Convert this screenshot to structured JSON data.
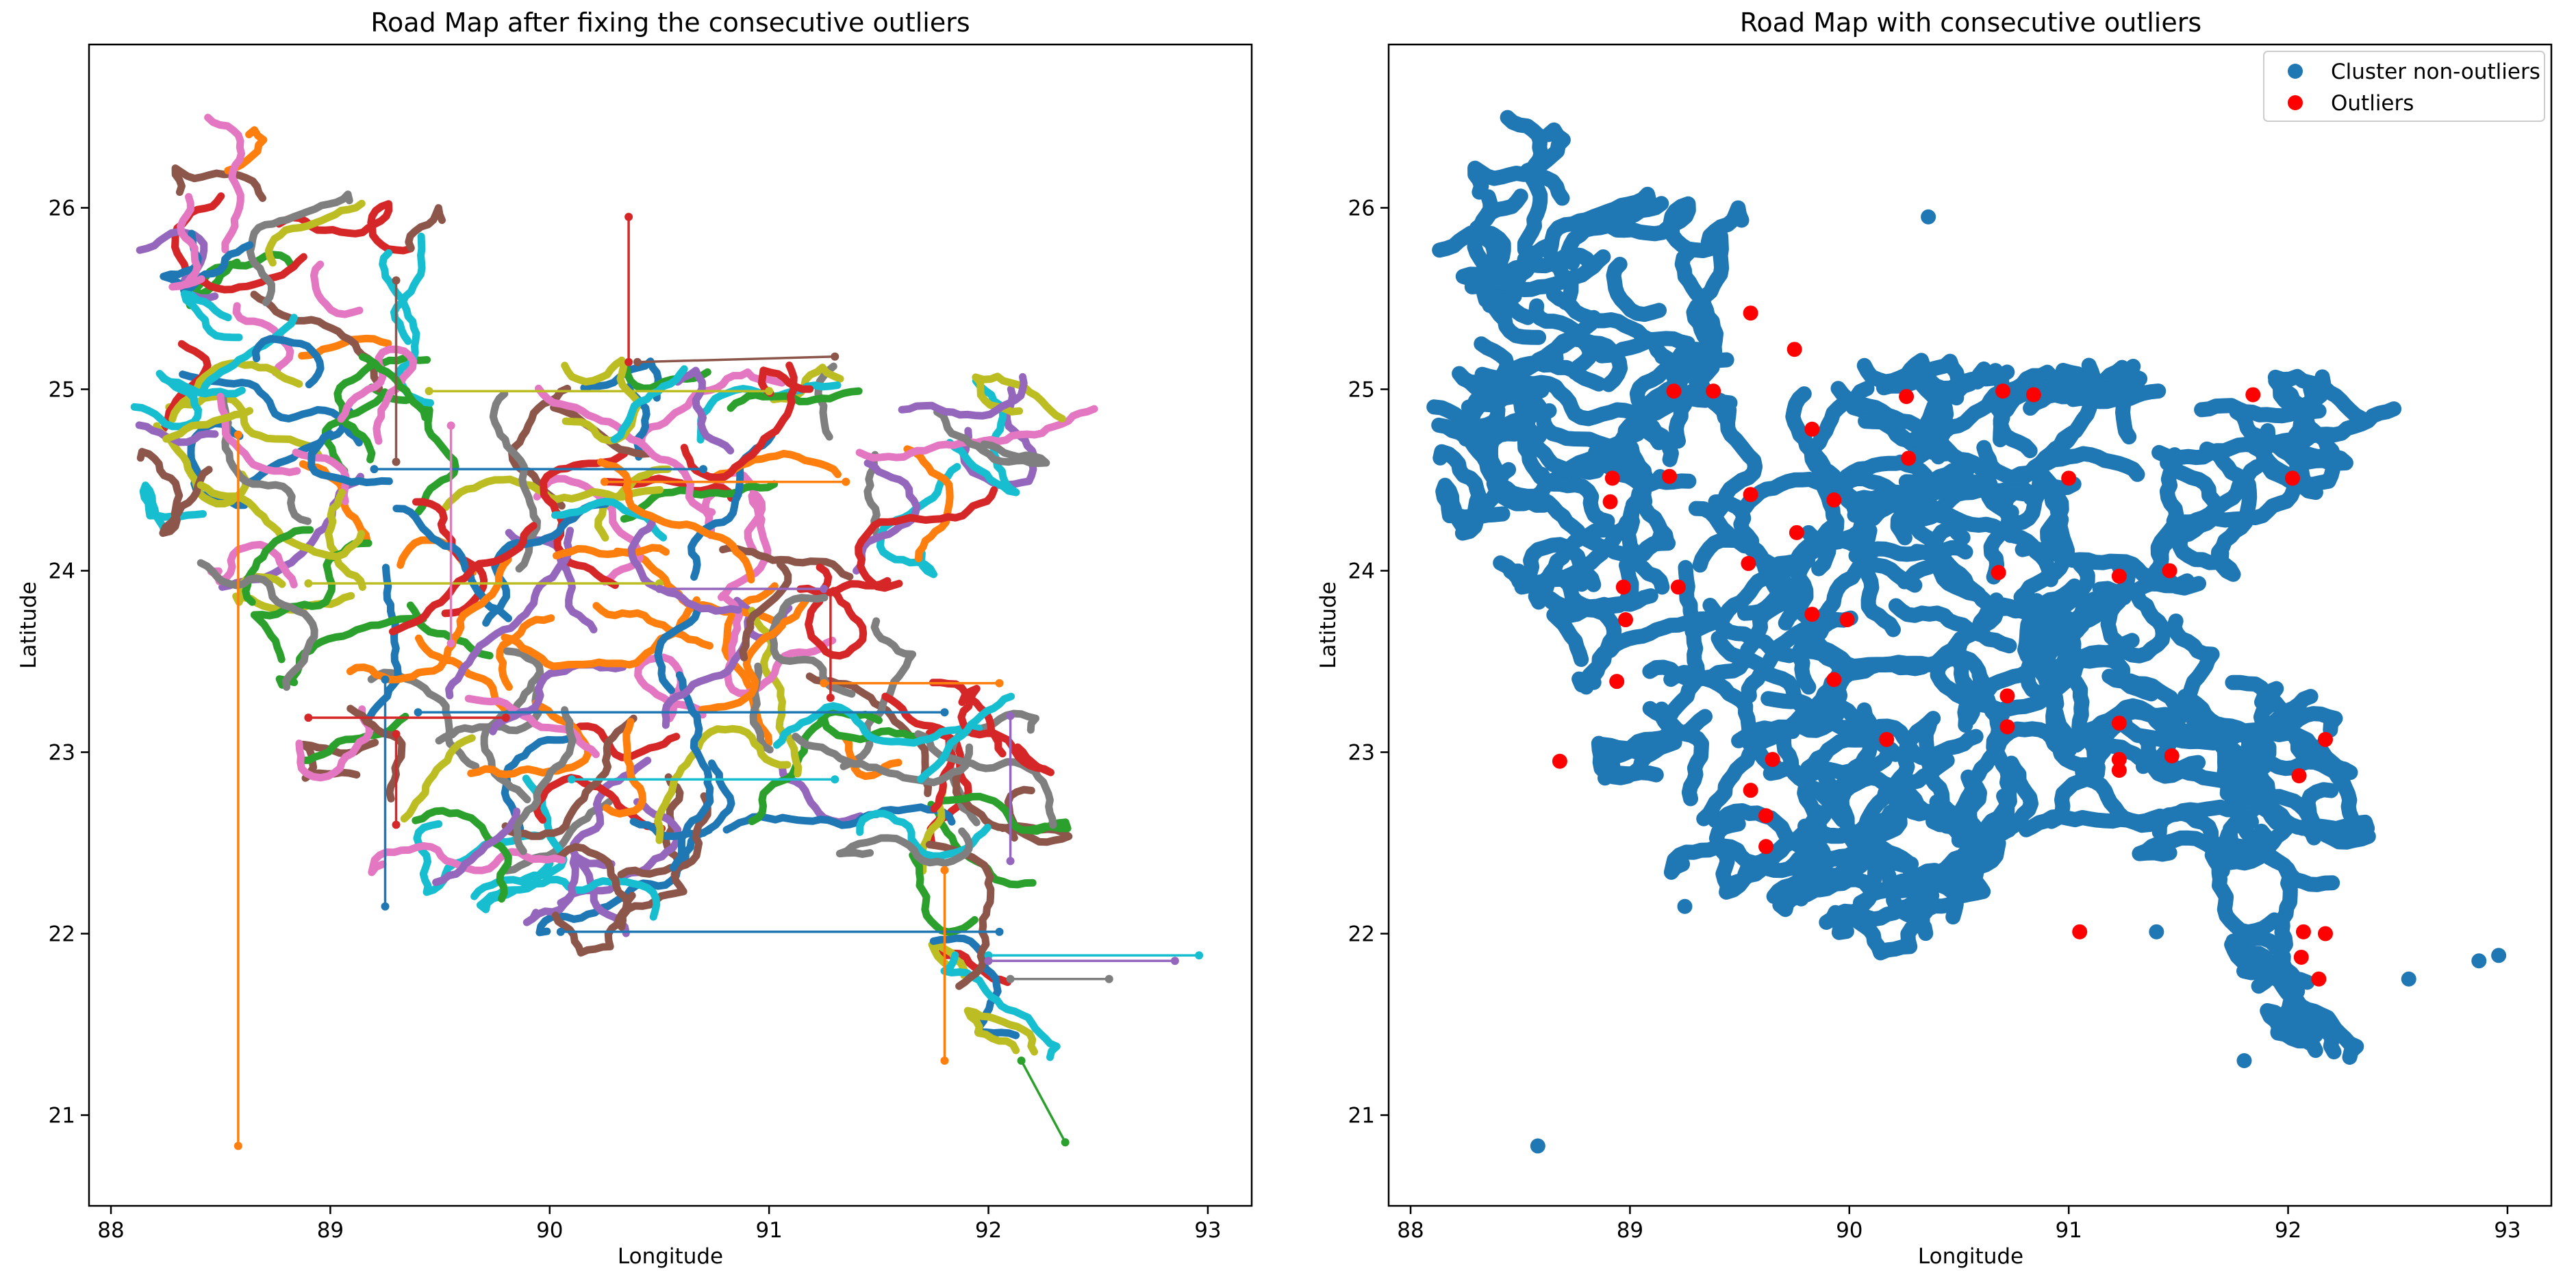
{
  "chart_data": [
    {
      "type": "line",
      "title": "Road Map after fixing the consecutive outliers",
      "xlabel": "Longitude",
      "ylabel": "Latitude",
      "xlim": [
        87.9,
        93.2
      ],
      "ylim": [
        20.5,
        26.9
      ],
      "xticks": [
        "88",
        "89",
        "90",
        "91",
        "92",
        "93"
      ],
      "yticks": [
        "21",
        "22",
        "23",
        "24",
        "25",
        "26"
      ],
      "grid": false,
      "series_colors": [
        "#1f77b4",
        "#ff7f0e",
        "#2ca02c",
        "#d62728",
        "#9467bd",
        "#8c564b",
        "#e377c2",
        "#7f7f7f",
        "#bcbd22",
        "#17becf"
      ],
      "connector_lines": [
        {
          "color": "#ff7f0e",
          "points": [
            [
              88.58,
              24.75
            ],
            [
              88.58,
              20.83
            ]
          ]
        },
        {
          "color": "#d62728",
          "points": [
            [
              90.36,
              25.95
            ],
            [
              90.36,
              25.15
            ]
          ]
        },
        {
          "color": "#1f77b4",
          "points": [
            [
              90.05,
              22.01
            ],
            [
              92.05,
              22.01
            ]
          ]
        },
        {
          "color": "#17becf",
          "points": [
            [
              92.0,
              21.88
            ],
            [
              92.96,
              21.88
            ]
          ]
        },
        {
          "color": "#ff7f0e",
          "points": [
            [
              91.8,
              22.35
            ],
            [
              91.8,
              21.3
            ]
          ]
        },
        {
          "color": "#7f7f7f",
          "points": [
            [
              92.1,
              21.75
            ],
            [
              92.55,
              21.75
            ]
          ]
        },
        {
          "color": "#9467bd",
          "points": [
            [
              92.0,
              21.85
            ],
            [
              92.85,
              21.85
            ]
          ]
        },
        {
          "color": "#ff7f0e",
          "points": [
            [
              91.25,
              23.38
            ],
            [
              92.05,
              23.38
            ]
          ]
        },
        {
          "color": "#1f77b4",
          "points": [
            [
              89.4,
              23.22
            ],
            [
              91.8,
              23.22
            ]
          ]
        },
        {
          "color": "#8c564b",
          "points": [
            [
              90.4,
              25.15
            ],
            [
              91.3,
              25.18
            ]
          ]
        },
        {
          "color": "#bcbd22",
          "points": [
            [
              89.45,
              24.99
            ],
            [
              91.0,
              24.99
            ]
          ]
        },
        {
          "color": "#ff7f0e",
          "points": [
            [
              90.25,
              24.49
            ],
            [
              91.35,
              24.49
            ]
          ]
        },
        {
          "color": "#1f77b4",
          "points": [
            [
              89.2,
              24.56
            ],
            [
              90.7,
              24.56
            ]
          ]
        },
        {
          "color": "#bcbd22",
          "points": [
            [
              88.9,
              23.93
            ],
            [
              90.5,
              23.93
            ]
          ]
        },
        {
          "color": "#9467bd",
          "points": [
            [
              90.5,
              23.9
            ],
            [
              91.25,
              23.9
            ]
          ]
        },
        {
          "color": "#d62728",
          "points": [
            [
              91.28,
              23.88
            ],
            [
              91.28,
              23.3
            ]
          ]
        },
        {
          "color": "#1f77b4",
          "points": [
            [
              89.25,
              23.4
            ],
            [
              89.25,
              22.15
            ]
          ]
        },
        {
          "color": "#17becf",
          "points": [
            [
              90.1,
              22.85
            ],
            [
              91.3,
              22.85
            ]
          ]
        },
        {
          "color": "#d62728",
          "points": [
            [
              89.3,
              23.1
            ],
            [
              89.3,
              22.6
            ]
          ]
        },
        {
          "color": "#9467bd",
          "points": [
            [
              92.1,
              23.2
            ],
            [
              92.1,
              22.4
            ]
          ]
        },
        {
          "color": "#d62728",
          "points": [
            [
              88.9,
              23.19
            ],
            [
              89.8,
              23.19
            ]
          ]
        },
        {
          "color": "#2ca02c",
          "points": [
            [
              92.15,
              21.3
            ],
            [
              92.35,
              20.85
            ]
          ]
        },
        {
          "color": "#8c564b",
          "points": [
            [
              89.3,
              25.6
            ],
            [
              89.3,
              24.6
            ]
          ]
        },
        {
          "color": "#e377c2",
          "points": [
            [
              89.55,
              24.8
            ],
            [
              89.55,
              23.6
            ]
          ]
        }
      ]
    },
    {
      "type": "scatter",
      "title": "Road Map with consecutive outliers",
      "xlabel": "Longitude",
      "ylabel": "Latitude",
      "xlim": [
        87.9,
        93.2
      ],
      "ylim": [
        20.5,
        26.9
      ],
      "xticks": [
        "88",
        "89",
        "90",
        "91",
        "92",
        "93"
      ],
      "yticks": [
        "21",
        "22",
        "23",
        "24",
        "25",
        "26"
      ],
      "grid": false,
      "legend_position": "top-right",
      "series": [
        {
          "name": "Cluster non-outliers",
          "color": "#1f77b4",
          "isolated_points": [
            [
              88.58,
              20.83
            ],
            [
              90.36,
              25.95
            ],
            [
              92.96,
              21.88
            ],
            [
              92.87,
              21.85
            ],
            [
              92.55,
              21.75
            ],
            [
              91.8,
              21.3
            ],
            [
              91.4,
              22.01
            ],
            [
              89.25,
              22.15
            ]
          ]
        },
        {
          "name": "Outliers",
          "color": "#ff0000",
          "points": [
            [
              89.55,
              25.42
            ],
            [
              89.75,
              25.22
            ],
            [
              89.2,
              24.99
            ],
            [
              89.38,
              24.99
            ],
            [
              90.26,
              24.96
            ],
            [
              90.7,
              24.99
            ],
            [
              90.84,
              24.97
            ],
            [
              91.84,
              24.97
            ],
            [
              89.83,
              24.78
            ],
            [
              90.27,
              24.62
            ],
            [
              88.92,
              24.51
            ],
            [
              89.18,
              24.52
            ],
            [
              91.0,
              24.51
            ],
            [
              92.02,
              24.51
            ],
            [
              89.55,
              24.42
            ],
            [
              89.93,
              24.39
            ],
            [
              88.91,
              24.38
            ],
            [
              89.76,
              24.21
            ],
            [
              89.54,
              24.04
            ],
            [
              90.68,
              23.99
            ],
            [
              91.23,
              23.97
            ],
            [
              91.46,
              24.0
            ],
            [
              88.97,
              23.91
            ],
            [
              89.22,
              23.91
            ],
            [
              89.83,
              23.76
            ],
            [
              89.99,
              23.73
            ],
            [
              88.98,
              23.73
            ],
            [
              88.94,
              23.39
            ],
            [
              89.93,
              23.4
            ],
            [
              90.72,
              23.31
            ],
            [
              91.23,
              23.16
            ],
            [
              90.72,
              23.14
            ],
            [
              90.17,
              23.07
            ],
            [
              92.17,
              23.07
            ],
            [
              88.68,
              22.95
            ],
            [
              89.65,
              22.96
            ],
            [
              91.23,
              22.96
            ],
            [
              91.47,
              22.98
            ],
            [
              91.23,
              22.9
            ],
            [
              92.05,
              22.87
            ],
            [
              89.55,
              22.79
            ],
            [
              89.62,
              22.65
            ],
            [
              89.62,
              22.48
            ],
            [
              91.05,
              22.01
            ],
            [
              92.07,
              22.01
            ],
            [
              92.17,
              22.0
            ],
            [
              92.06,
              21.87
            ],
            [
              92.14,
              21.75
            ]
          ]
        }
      ]
    }
  ]
}
